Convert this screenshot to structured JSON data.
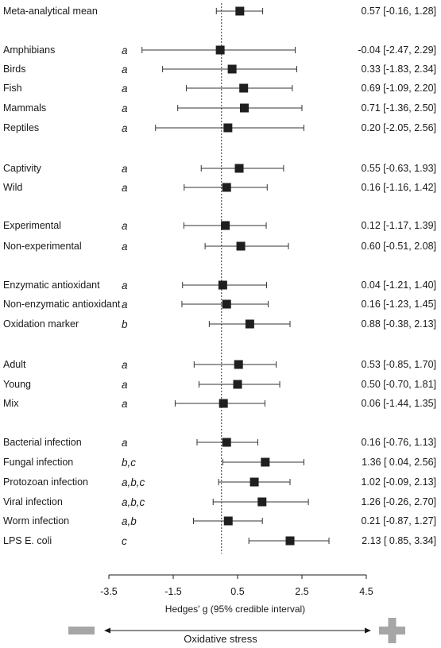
{
  "chart_data": {
    "type": "forest",
    "xlabel": "Hedges' g (95% credible interval)",
    "xlim": [
      -3.5,
      4.5
    ],
    "xticks": [
      -3.5,
      -1.5,
      0.5,
      2.5,
      4.5
    ],
    "xtick_labels": [
      "-3.5",
      "-1.5",
      "0.5",
      "2.5",
      "4.5"
    ],
    "reference_line": 0,
    "rows": [
      {
        "label": "Meta-analytical mean",
        "group": "",
        "estimate": 0.57,
        "lower": -0.16,
        "upper": 1.28,
        "ci_text": "0.57 [-0.16, 1.28]"
      },
      {
        "label": "Amphibians",
        "group": "a",
        "estimate": -0.04,
        "lower": -2.47,
        "upper": 2.29,
        "ci_text": "-0.04 [-2.47, 2.29]"
      },
      {
        "label": "Birds",
        "group": "a",
        "estimate": 0.33,
        "lower": -1.83,
        "upper": 2.34,
        "ci_text": "0.33 [-1.83, 2.34]"
      },
      {
        "label": "Fish",
        "group": "a",
        "estimate": 0.69,
        "lower": -1.09,
        "upper": 2.2,
        "ci_text": "0.69 [-1.09, 2.20]"
      },
      {
        "label": "Mammals",
        "group": "a",
        "estimate": 0.71,
        "lower": -1.36,
        "upper": 2.5,
        "ci_text": "0.71 [-1.36, 2.50]"
      },
      {
        "label": "Reptiles",
        "group": "a",
        "estimate": 0.2,
        "lower": -2.05,
        "upper": 2.56,
        "ci_text": "0.20 [-2.05, 2.56]"
      },
      {
        "label": "Captivity",
        "group": "a",
        "estimate": 0.55,
        "lower": -0.63,
        "upper": 1.93,
        "ci_text": "0.55 [-0.63, 1.93]"
      },
      {
        "label": "Wild",
        "group": "a",
        "estimate": 0.16,
        "lower": -1.16,
        "upper": 1.42,
        "ci_text": "0.16 [-1.16, 1.42]"
      },
      {
        "label": "Experimental",
        "group": "a",
        "estimate": 0.12,
        "lower": -1.17,
        "upper": 1.39,
        "ci_text": "0.12 [-1.17, 1.39]"
      },
      {
        "label": "Non-experimental",
        "group": "a",
        "estimate": 0.6,
        "lower": -0.51,
        "upper": 2.08,
        "ci_text": "0.60 [-0.51, 2.08]"
      },
      {
        "label": "Enzymatic antioxidant",
        "group": "a",
        "estimate": 0.04,
        "lower": -1.21,
        "upper": 1.4,
        "ci_text": "0.04 [-1.21, 1.40]"
      },
      {
        "label": "Non-enzymatic antioxidant",
        "group": "a",
        "estimate": 0.16,
        "lower": -1.23,
        "upper": 1.45,
        "ci_text": "0.16 [-1.23, 1.45]"
      },
      {
        "label": "Oxidation marker",
        "group": "b",
        "estimate": 0.88,
        "lower": -0.38,
        "upper": 2.13,
        "ci_text": "0.88 [-0.38, 2.13]"
      },
      {
        "label": "Adult",
        "group": "a",
        "estimate": 0.53,
        "lower": -0.85,
        "upper": 1.7,
        "ci_text": "0.53 [-0.85, 1.70]"
      },
      {
        "label": "Young",
        "group": "a",
        "estimate": 0.5,
        "lower": -0.7,
        "upper": 1.81,
        "ci_text": "0.50 [-0.70, 1.81]"
      },
      {
        "label": "Mix",
        "group": "a",
        "estimate": 0.06,
        "lower": -1.44,
        "upper": 1.35,
        "ci_text": "0.06 [-1.44, 1.35]"
      },
      {
        "label": "Bacterial infection",
        "group": "a",
        "estimate": 0.16,
        "lower": -0.76,
        "upper": 1.13,
        "ci_text": "0.16 [-0.76, 1.13]"
      },
      {
        "label": "Fungal infection",
        "group": "b,c",
        "estimate": 1.36,
        "lower": 0.04,
        "upper": 2.56,
        "ci_text": "1.36 [ 0.04, 2.56]"
      },
      {
        "label": "Protozoan infection",
        "group": "a,b,c",
        "estimate": 1.02,
        "lower": -0.09,
        "upper": 2.13,
        "ci_text": "1.02 [-0.09, 2.13]"
      },
      {
        "label": "Viral infection",
        "group": "a,b,c",
        "estimate": 1.26,
        "lower": -0.26,
        "upper": 2.7,
        "ci_text": "1.26 [-0.26, 2.70]"
      },
      {
        "label": "Worm infection",
        "group": "a,b",
        "estimate": 0.21,
        "lower": -0.87,
        "upper": 1.27,
        "ci_text": "0.21 [-0.87, 1.27]"
      },
      {
        "label": "LPS E. coli",
        "group": "c",
        "estimate": 2.13,
        "lower": 0.85,
        "upper": 3.34,
        "ci_text": "2.13 [ 0.85, 3.34]"
      }
    ],
    "direction_label": "Oxidative stress",
    "colors": {
      "marker": "#1f1f1f",
      "line": "#333333",
      "sign": "#a6a6a6"
    }
  }
}
